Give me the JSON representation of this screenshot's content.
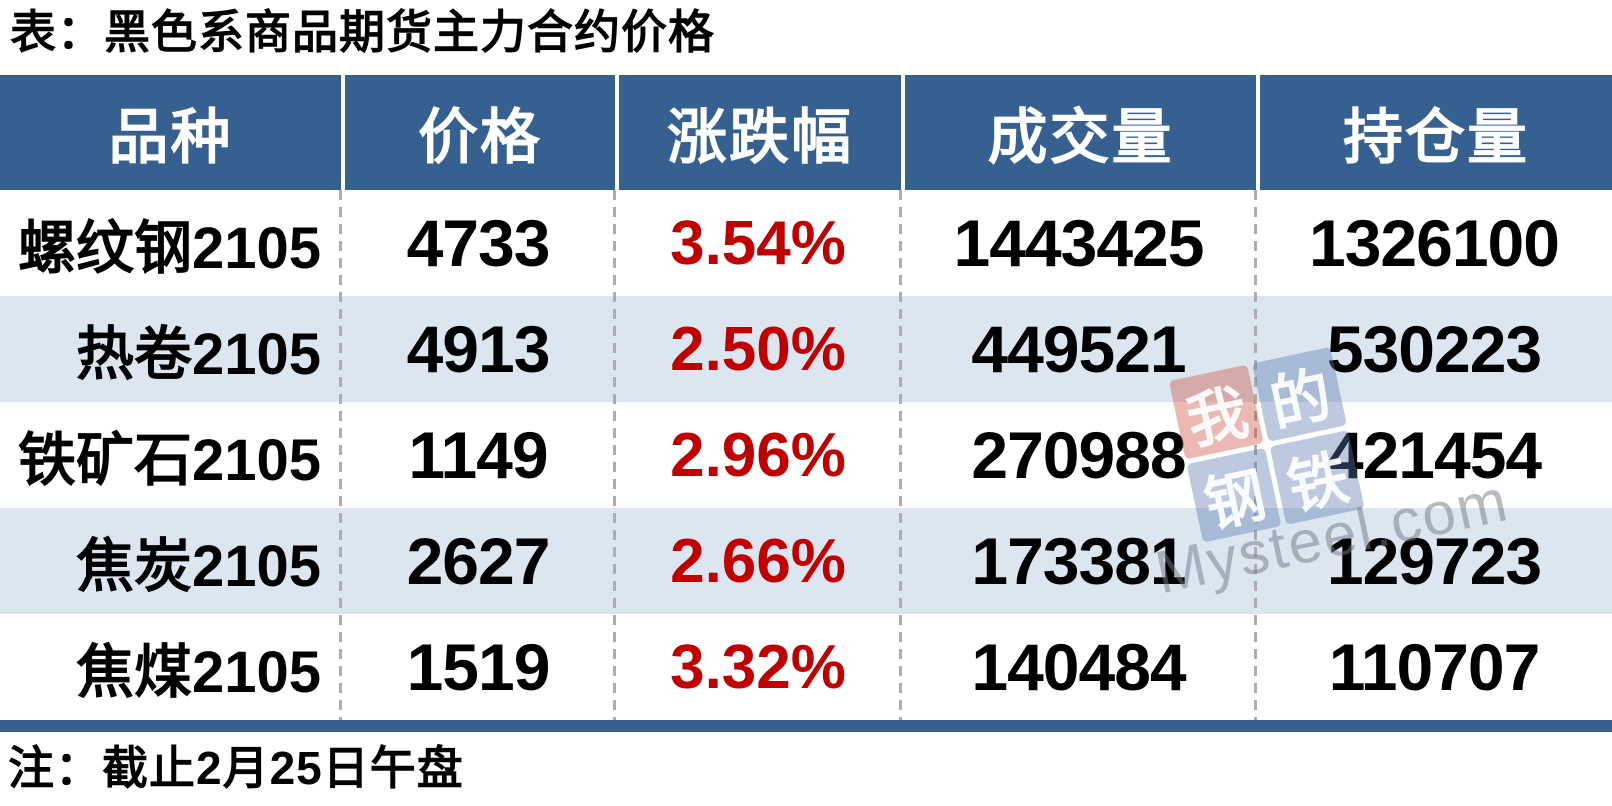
{
  "title": "表：黑色系商品期货主力合约价格",
  "note": "注：截止2月25日午盘",
  "chart_data": {
    "type": "table",
    "title": "表：黑色系商品期货主力合约价格",
    "columns": [
      "品种",
      "价格",
      "涨跌幅",
      "成交量",
      "持仓量"
    ],
    "rows": [
      [
        "螺纹钢2105",
        4733,
        "3.54%",
        1443425,
        1326100
      ],
      [
        "热卷2105",
        4913,
        "2.50%",
        449521,
        530223
      ],
      [
        "铁矿石2105",
        1149,
        "2.96%",
        270988,
        421454
      ],
      [
        "焦炭2105",
        2627,
        "2.66%",
        173381,
        129723
      ],
      [
        "焦煤2105",
        1519,
        "3.32%",
        140484,
        110707
      ]
    ],
    "note": "注：截止2月25日午盘",
    "layout": {
      "zebra_striping": true,
      "change_column_color": "#c00000"
    }
  },
  "watermark": {
    "tiles": [
      {
        "char": "我",
        "color": "red"
      },
      {
        "char": "的",
        "color": "blue"
      },
      {
        "char": "钢",
        "color": "blue"
      },
      {
        "char": "铁",
        "color": "blue"
      }
    ],
    "domain": "Mysteel.com"
  },
  "colors": {
    "header_bg": "#35608f",
    "row_alt_bg": "#dce6f0",
    "change_text": "#c00000",
    "bottom_bar": "#35608f",
    "divider_dash": "#adadad"
  }
}
